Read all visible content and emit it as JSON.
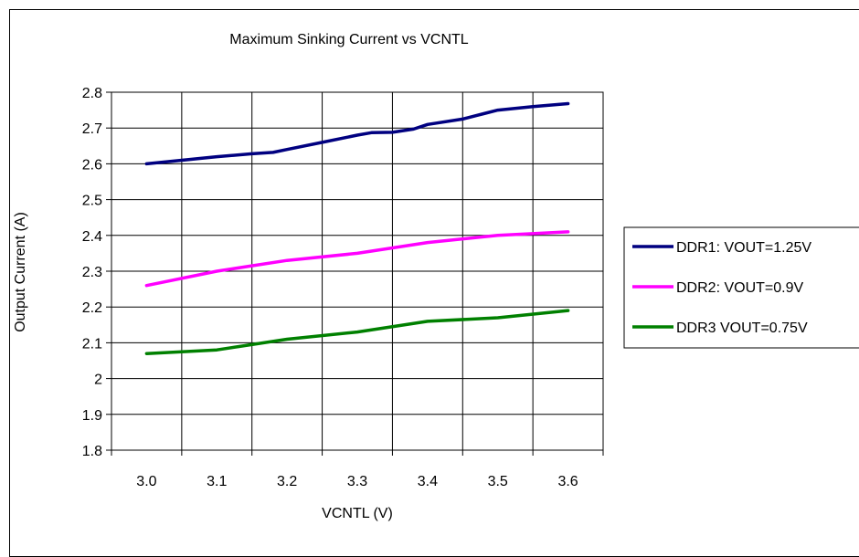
{
  "chart_data": {
    "type": "line",
    "title": "Maximum Sinking Current vs VCNTL",
    "xlabel": "VCNTL (V)",
    "ylabel": "Output Current (A)",
    "x_categories": [
      "3.0",
      "3.1",
      "3.2",
      "3.3",
      "3.4",
      "3.5",
      "3.6"
    ],
    "y_ticks": [
      "1.8",
      "1.9",
      "2",
      "2.1",
      "2.2",
      "2.3",
      "2.4",
      "2.5",
      "2.6",
      "2.7",
      "2.8"
    ],
    "xlim": [
      2.95,
      3.65
    ],
    "ylim": [
      1.8,
      2.8
    ],
    "grid": true,
    "legend_position": "right",
    "series": [
      {
        "name": "DDR1: VOUT=1.25V",
        "color": "#000080",
        "x": [
          3.0,
          3.05,
          3.1,
          3.15,
          3.18,
          3.2,
          3.25,
          3.3,
          3.32,
          3.35,
          3.38,
          3.4,
          3.45,
          3.48,
          3.5,
          3.55,
          3.6
        ],
        "y": [
          2.6,
          2.61,
          2.62,
          2.628,
          2.632,
          2.64,
          2.66,
          2.68,
          2.687,
          2.688,
          2.697,
          2.71,
          2.725,
          2.74,
          2.75,
          2.76,
          2.768
        ]
      },
      {
        "name": "DDR2: VOUT=0.9V",
        "color": "#ff00ff",
        "x": [
          3.0,
          3.1,
          3.2,
          3.3,
          3.4,
          3.5,
          3.6
        ],
        "y": [
          2.26,
          2.3,
          2.33,
          2.35,
          2.38,
          2.4,
          2.41
        ]
      },
      {
        "name": "DDR3 VOUT=0.75V",
        "color": "#008000",
        "x": [
          3.0,
          3.1,
          3.2,
          3.3,
          3.4,
          3.5,
          3.6
        ],
        "y": [
          2.07,
          2.08,
          2.11,
          2.13,
          2.16,
          2.17,
          2.19
        ]
      }
    ]
  }
}
